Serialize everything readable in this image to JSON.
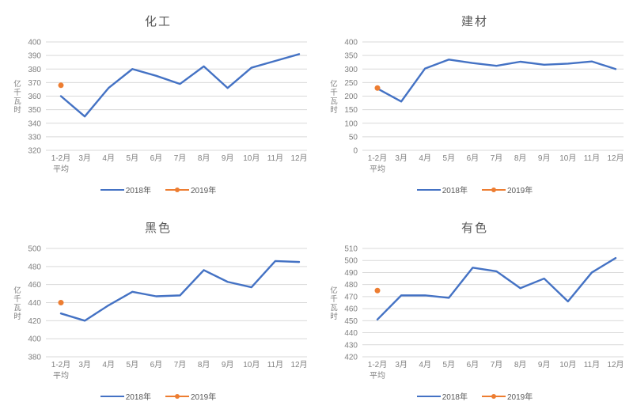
{
  "page": {
    "background": "#ffffff"
  },
  "colors": {
    "series_2018": "#4472C4",
    "series_2019": "#ED7D31",
    "gridline": "#D9D9D9",
    "axis_text": "#808080",
    "title_text": "#595959"
  },
  "chart_data": [
    {
      "type": "line",
      "title": "化工",
      "ylabel": "亿千瓦时",
      "xlabel": "",
      "ylim": [
        320,
        400
      ],
      "ystep": 10,
      "grid": true,
      "legend_position": "bottom",
      "categories": [
        "1-2月平均",
        "3月",
        "4月",
        "5月",
        "6月",
        "7月",
        "8月",
        "9月",
        "10月",
        "11月",
        "12月"
      ],
      "series": [
        {
          "name": "2018年",
          "color": "#4472C4",
          "style": "line",
          "values": [
            360,
            345,
            366,
            380,
            375,
            369,
            382,
            366,
            381,
            386,
            391
          ]
        },
        {
          "name": "2019年",
          "color": "#ED7D31",
          "style": "point",
          "values": [
            368
          ]
        }
      ]
    },
    {
      "type": "line",
      "title": "建材",
      "ylabel": "亿千瓦时",
      "xlabel": "",
      "ylim": [
        0,
        400
      ],
      "ystep": 50,
      "grid": true,
      "legend_position": "bottom",
      "categories": [
        "1-2月平均",
        "3月",
        "4月",
        "5月",
        "6月",
        "7月",
        "8月",
        "9月",
        "10月",
        "11月",
        "12月"
      ],
      "series": [
        {
          "name": "2018年",
          "color": "#4472C4",
          "style": "line",
          "values": [
            228,
            180,
            302,
            335,
            322,
            312,
            327,
            316,
            320,
            328,
            300
          ]
        },
        {
          "name": "2019年",
          "color": "#ED7D31",
          "style": "point",
          "values": [
            230
          ]
        }
      ]
    },
    {
      "type": "line",
      "title": "黑色",
      "ylabel": "亿千瓦时",
      "xlabel": "",
      "ylim": [
        380,
        500
      ],
      "ystep": 20,
      "grid": true,
      "legend_position": "bottom",
      "categories": [
        "1-2月平均",
        "3月",
        "4月",
        "5月",
        "6月",
        "7月",
        "8月",
        "9月",
        "10月",
        "11月",
        "12月"
      ],
      "series": [
        {
          "name": "2018年",
          "color": "#4472C4",
          "style": "line",
          "values": [
            428,
            420,
            437,
            452,
            447,
            448,
            476,
            463,
            457,
            486,
            485
          ]
        },
        {
          "name": "2019年",
          "color": "#ED7D31",
          "style": "point",
          "values": [
            440
          ]
        }
      ]
    },
    {
      "type": "line",
      "title": "有色",
      "ylabel": "亿千瓦时",
      "xlabel": "",
      "ylim": [
        420,
        510
      ],
      "ystep": 10,
      "grid": true,
      "legend_position": "bottom",
      "categories": [
        "1-2月平均",
        "3月",
        "4月",
        "5月",
        "6月",
        "7月",
        "8月",
        "9月",
        "10月",
        "11月",
        "12月"
      ],
      "series": [
        {
          "name": "2018年",
          "color": "#4472C4",
          "style": "line",
          "values": [
            451,
            471,
            471,
            469,
            494,
            491,
            477,
            485,
            466,
            490,
            502
          ]
        },
        {
          "name": "2019年",
          "color": "#ED7D31",
          "style": "point",
          "values": [
            475
          ]
        }
      ]
    }
  ]
}
